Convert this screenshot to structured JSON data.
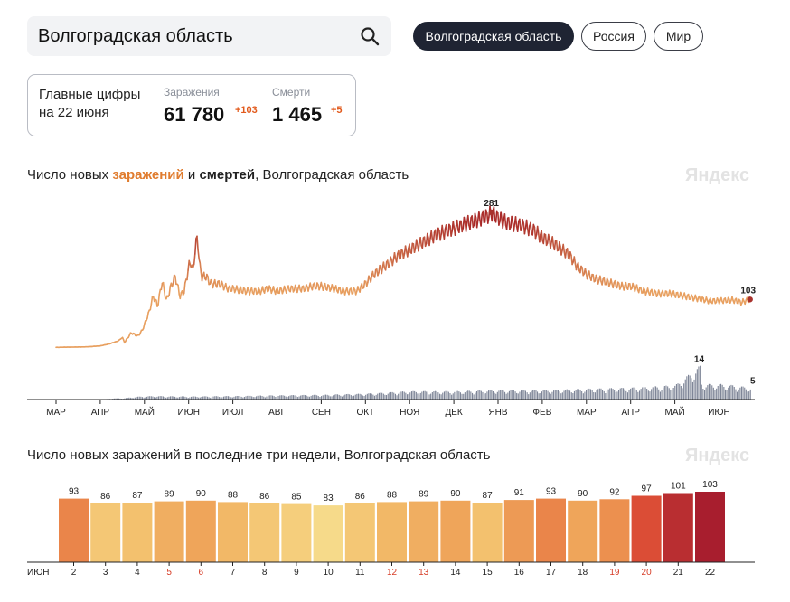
{
  "search": {
    "value": "Волгоградская область"
  },
  "region_tabs": [
    {
      "label": "Волгоградская область",
      "active": true
    },
    {
      "label": "Россия",
      "active": false
    },
    {
      "label": "Мир",
      "active": false
    }
  ],
  "stats": {
    "heading_line1": "Главные цифры",
    "heading_line2": "на 22 июня",
    "infections": {
      "label": "Заражения",
      "value": "61 780",
      "delta": "+103"
    },
    "deaths": {
      "label": "Смерти",
      "value": "1 465",
      "delta": "+5"
    }
  },
  "chart1_title": {
    "pre": "Число новых ",
    "infections": "заражений",
    "mid": " и ",
    "deaths": "смертей",
    "post": ", Волгоградская область"
  },
  "chart2_title": "Число новых заражений в последние три недели, Волгоградская область",
  "watermark": "Яндекс",
  "colors": {
    "accent_orange": "#e07c2e",
    "peak_red": "#a8322d",
    "tab_active_bg": "#1f2433"
  },
  "chart_data": [
    {
      "type": "line",
      "title": "Число новых заражений и смертей, Волгоградская область",
      "x_tick_labels": [
        "МАР",
        "АПР",
        "МАЙ",
        "ИЮН",
        "ИЮЛ",
        "АВГ",
        "СЕН",
        "ОКТ",
        "НОЯ",
        "ДЕК",
        "ЯНВ",
        "ФЕВ",
        "МАР",
        "АПР",
        "МАЙ",
        "ИЮН"
      ],
      "annotations": [
        {
          "series": "infections",
          "label": "281",
          "month_index": 9.85
        },
        {
          "series": "infections",
          "label": "103",
          "month_index": 15.7
        },
        {
          "series": "deaths",
          "label": "14",
          "month_index": 14.55
        },
        {
          "series": "deaths",
          "label": "5",
          "month_index": 15.7
        }
      ],
      "infections_ylim": [
        0,
        300
      ],
      "deaths_ylim": [
        0,
        15
      ],
      "infections_knots": [
        [
          0,
          5
        ],
        [
          0.7,
          6
        ],
        [
          1.0,
          8
        ],
        [
          1.2,
          12
        ],
        [
          1.4,
          18
        ],
        [
          1.5,
          25
        ],
        [
          1.55,
          15
        ],
        [
          1.7,
          35
        ],
        [
          1.85,
          28
        ],
        [
          1.95,
          40
        ],
        [
          2.1,
          75
        ],
        [
          2.2,
          110
        ],
        [
          2.3,
          90
        ],
        [
          2.4,
          140
        ],
        [
          2.5,
          100
        ],
        [
          2.6,
          130
        ],
        [
          2.7,
          150
        ],
        [
          2.8,
          110
        ],
        [
          2.9,
          120
        ],
        [
          3.0,
          170
        ],
        [
          3.05,
          180
        ],
        [
          3.1,
          160
        ],
        [
          3.15,
          210
        ],
        [
          3.2,
          230
        ],
        [
          3.25,
          170
        ],
        [
          3.3,
          150
        ],
        [
          3.4,
          150
        ],
        [
          3.5,
          135
        ],
        [
          3.7,
          135
        ],
        [
          3.9,
          125
        ],
        [
          4.0,
          125
        ],
        [
          4.3,
          120
        ],
        [
          4.6,
          120
        ],
        [
          4.8,
          125
        ],
        [
          5.0,
          120
        ],
        [
          5.3,
          125
        ],
        [
          5.6,
          125
        ],
        [
          5.8,
          130
        ],
        [
          6.0,
          130
        ],
        [
          6.3,
          125
        ],
        [
          6.5,
          120
        ],
        [
          6.8,
          120
        ],
        [
          7.0,
          135
        ],
        [
          7.2,
          155
        ],
        [
          7.5,
          175
        ],
        [
          7.7,
          190
        ],
        [
          8.0,
          205
        ],
        [
          8.3,
          220
        ],
        [
          8.6,
          235
        ],
        [
          8.9,
          245
        ],
        [
          9.2,
          255
        ],
        [
          9.5,
          265
        ],
        [
          9.8,
          275
        ],
        [
          9.85,
          281
        ],
        [
          10.0,
          270
        ],
        [
          10.2,
          260
        ],
        [
          10.5,
          255
        ],
        [
          10.8,
          245
        ],
        [
          11.0,
          230
        ],
        [
          11.3,
          215
        ],
        [
          11.6,
          195
        ],
        [
          11.8,
          170
        ],
        [
          12.0,
          155
        ],
        [
          12.2,
          145
        ],
        [
          12.4,
          140
        ],
        [
          12.6,
          135
        ],
        [
          12.8,
          130
        ],
        [
          13.0,
          130
        ],
        [
          13.3,
          120
        ],
        [
          13.6,
          115
        ],
        [
          13.9,
          115
        ],
        [
          14.2,
          110
        ],
        [
          14.5,
          105
        ],
        [
          14.8,
          100
        ],
        [
          15.0,
          100
        ],
        [
          15.3,
          102
        ],
        [
          15.5,
          97
        ],
        [
          15.7,
          103
        ]
      ],
      "deaths_knots": [
        [
          0,
          0
        ],
        [
          1.0,
          0
        ],
        [
          1.3,
          0.5
        ],
        [
          1.5,
          0.5
        ],
        [
          1.8,
          1.2
        ],
        [
          2.2,
          1.5
        ],
        [
          3.0,
          1.3
        ],
        [
          4.0,
          1.5
        ],
        [
          5.0,
          1.8
        ],
        [
          6.0,
          2.0
        ],
        [
          7.0,
          2.5
        ],
        [
          8.0,
          3.5
        ],
        [
          9.0,
          3.5
        ],
        [
          10.0,
          4.0
        ],
        [
          11.0,
          4.0
        ],
        [
          12.0,
          4.5
        ],
        [
          13.0,
          5.0
        ],
        [
          14.0,
          6.0
        ],
        [
          14.55,
          14
        ],
        [
          14.6,
          6.5
        ],
        [
          15.0,
          6.5
        ],
        [
          15.3,
          6.0
        ],
        [
          15.7,
          5
        ]
      ]
    },
    {
      "type": "bar",
      "title": "Число новых заражений в последние три недели, Волгоградская область",
      "month_label": "ИЮН",
      "categories": [
        "2",
        "3",
        "4",
        "5",
        "6",
        "7",
        "8",
        "9",
        "10",
        "11",
        "12",
        "13",
        "14",
        "15",
        "16",
        "17",
        "18",
        "19",
        "20",
        "21",
        "22"
      ],
      "values": [
        93,
        86,
        87,
        89,
        90,
        88,
        86,
        85,
        83,
        86,
        88,
        89,
        90,
        87,
        91,
        93,
        90,
        92,
        97,
        101,
        103
      ],
      "weekend_days": [
        "5",
        "6",
        "12",
        "13",
        "19",
        "20"
      ],
      "ylim": [
        0,
        110
      ]
    }
  ]
}
